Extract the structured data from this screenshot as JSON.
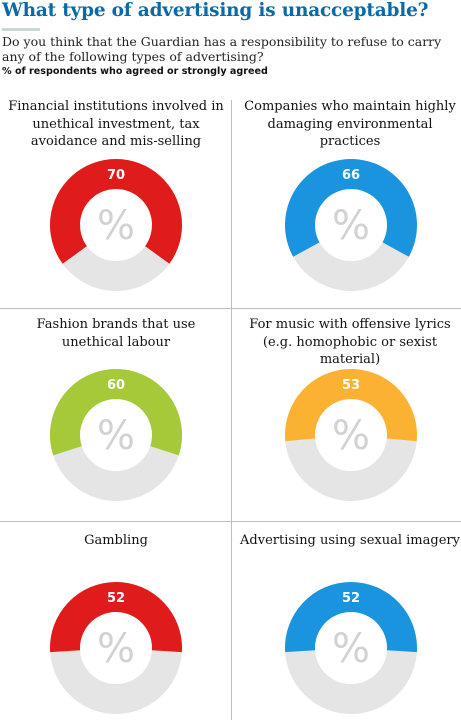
{
  "header": {
    "title": "What type of advertising is unacceptable?",
    "subtitle": "Do you think that the Guardian has a responsibility to refuse to carry any of the following types of advertising?",
    "note": "% of respondents who agreed or strongly agreed"
  },
  "chart_data": [
    {
      "type": "pie",
      "title": "Financial institutions involved in unethical investment, tax avoidance and mis-selling",
      "values": [
        70
      ],
      "max": 100,
      "color": "#e01b1b",
      "center_symbol": "%"
    },
    {
      "type": "pie",
      "title": "Companies who maintain highly damaging environmental practices",
      "values": [
        66
      ],
      "max": 100,
      "color": "#1b94e0",
      "center_symbol": "%"
    },
    {
      "type": "pie",
      "title": "Fashion brands that use unethical labour",
      "values": [
        60
      ],
      "max": 100,
      "color": "#a6c93a",
      "center_symbol": "%"
    },
    {
      "type": "pie",
      "title": "For music with offensive lyrics (e.g. homophobic or sexist material)",
      "values": [
        53
      ],
      "max": 100,
      "color": "#fbb232",
      "center_symbol": "%"
    },
    {
      "type": "pie",
      "title": "Gambling",
      "values": [
        52
      ],
      "max": 100,
      "color": "#e01b1b",
      "center_symbol": "%"
    },
    {
      "type": "pie",
      "title": "Advertising using sexual imagery",
      "values": [
        52
      ],
      "max": 100,
      "color": "#1b94e0",
      "center_symbol": "%"
    }
  ],
  "colors": {
    "remainder": "#e5e5e5",
    "hole": "#ffffff",
    "symbol": "#d2d2d2",
    "value_text": "#ffffff"
  }
}
